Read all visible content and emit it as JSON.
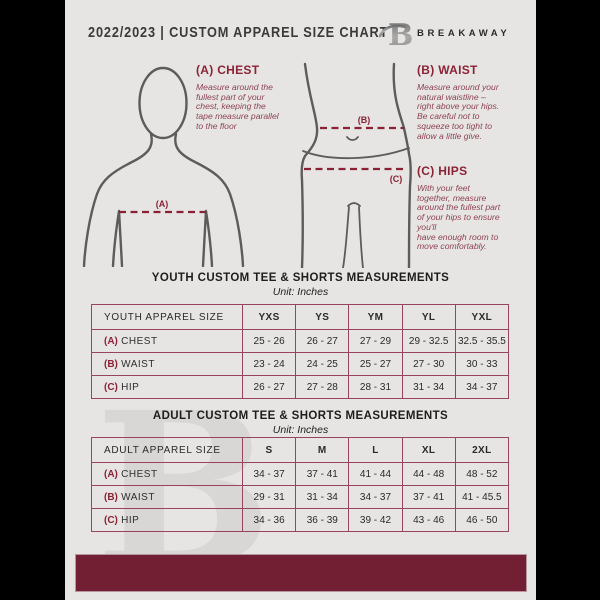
{
  "header": {
    "title": "2022/2023  |  CUSTOM APPAREL SIZE CHART",
    "brand": "BREAKAWAY"
  },
  "figure_labels": {
    "chest": "(A)",
    "waist": "(B)",
    "hips": "(C)"
  },
  "measure_guide": {
    "chest": {
      "heading": "(A) CHEST",
      "text": "Measure around the\nfullest part of your\nchest, keeping the\ntape measure parallel\nto the floor"
    },
    "waist": {
      "heading": "(B) WAIST",
      "text": "Measure around your\nnatural waistline –\nright above your hips.\nBe careful not to\nsqueeze too tight to\nallow a little give."
    },
    "hips": {
      "heading": "(C) HIPS",
      "text": "With your feet\ntogether, measure\naround the fullest part\nof your hips to ensure\nyou'll\nhave enough room to\nmove comfortably."
    }
  },
  "youth_table": {
    "title": "YOUTH CUSTOM TEE & SHORTS MEASUREMENTS",
    "unit": "Unit: Inches",
    "size_label": "YOUTH APPAREL SIZE",
    "columns": [
      "YXS",
      "YS",
      "YM",
      "YL",
      "YXL"
    ],
    "rows": [
      {
        "marker": "(A)",
        "label": "CHEST",
        "values": [
          "25 - 26",
          "26 - 27",
          "27 - 29",
          "29 - 32.5",
          "32.5 - 35.5"
        ]
      },
      {
        "marker": "(B)",
        "label": "WAIST",
        "values": [
          "23 - 24",
          "24 - 25",
          "25 - 27",
          "27 - 30",
          "30 - 33"
        ]
      },
      {
        "marker": "(C)",
        "label": "HIP",
        "values": [
          "26 - 27",
          "27 - 28",
          "28 - 31",
          "31 - 34",
          "34 - 37"
        ]
      }
    ]
  },
  "adult_table": {
    "title": "ADULT CUSTOM TEE & SHORTS MEASUREMENTS",
    "unit": "Unit: Inches",
    "size_label": "ADULT APPAREL SIZE",
    "columns": [
      "S",
      "M",
      "L",
      "XL",
      "2XL"
    ],
    "rows": [
      {
        "marker": "(A)",
        "label": "CHEST",
        "values": [
          "34 - 37",
          "37 - 41",
          "41 - 44",
          "44 - 48",
          "48 - 52"
        ]
      },
      {
        "marker": "(B)",
        "label": "WAIST",
        "values": [
          "29 - 31",
          "31 - 34",
          "34 - 37",
          "37 - 41",
          "41 - 45.5"
        ]
      },
      {
        "marker": "(C)",
        "label": "HIP",
        "values": [
          "34 - 36",
          "36 - 39",
          "39 - 42",
          "43 - 46",
          "46 - 50"
        ]
      }
    ]
  },
  "watermark_letter": "B",
  "colors": {
    "page_bg": "#e6e5e3",
    "accent_maroon": "#8c2236",
    "table_line_maroon": "#96455c",
    "footer_bar_maroon": "#731f33",
    "figure_outline_gray": "#5c5c5c",
    "ink": "#2f2f2f"
  }
}
